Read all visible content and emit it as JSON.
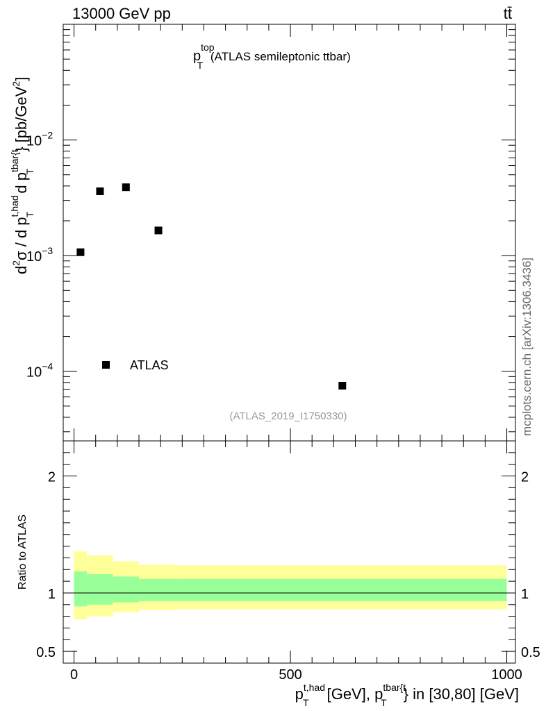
{
  "header": {
    "left": "13000 GeV pp",
    "right": "tt̄"
  },
  "side_label": "mcplots.cern.ch [arXiv:1306.3436]",
  "chart_data": [
    {
      "type": "scatter",
      "title_main": "p",
      "title_sup": "top",
      "title_sub": "T",
      "title_rest": " (ATLAS semileptonic ttbar)",
      "ylabel_parts": {
        "d": "d",
        "sup2": "2",
        "sigma": "σ  /  d p",
        "sup_thad": "t,had",
        "sub_T1": "T",
        "dp": " d p",
        "sup_tbar": "tbar{t",
        "sub_T2": "T",
        "unit": "} [pb/GeV",
        "unit_sup": "2",
        "unit_end": "]"
      },
      "yscale": "log",
      "xlim": [
        -25,
        1020
      ],
      "ylim": [
        2.5e-05,
        0.1
      ],
      "yticks": [
        {
          "value": 0.0001,
          "base": "10",
          "exp": "−4"
        },
        {
          "value": 0.001,
          "base": "10",
          "exp": "−3"
        },
        {
          "value": 0.01,
          "base": "10",
          "exp": "−2"
        }
      ],
      "series": [
        {
          "name": "ATLAS",
          "marker": "square",
          "color": "#000000",
          "x": [
            15,
            60,
            120,
            195,
            620
          ],
          "y": [
            0.00107,
            0.0036,
            0.0039,
            0.00165,
            7.5e-05
          ]
        }
      ],
      "legend_position": "bottom-left",
      "watermark": "(ATLAS_2019_I1750330)"
    },
    {
      "type": "area",
      "ylabel": "Ratio to ATLAS",
      "xlabel_parts": {
        "p1": "p",
        "sup1": "t,had",
        "sub1": "T",
        "mid": " [GeV], p",
        "sup2": "tbar{t",
        "sub2": "T",
        "end": "} in [30,80] [GeV]"
      },
      "xlim": [
        -25,
        1020
      ],
      "ylim": [
        0.4,
        2.3
      ],
      "xticks": [
        {
          "value": 0,
          "label": "0"
        },
        {
          "value": 500,
          "label": "500"
        },
        {
          "value": 1000,
          "label": "1000"
        }
      ],
      "yticks": [
        {
          "value": 0.5,
          "label": "0.5"
        },
        {
          "value": 1,
          "label": "1"
        },
        {
          "value": 2,
          "label": "2"
        }
      ],
      "bins": [
        0,
        30,
        90,
        150,
        240,
        1000
      ],
      "outer_band": {
        "color": "#ffff99",
        "lo": [
          0.775,
          0.8,
          0.835,
          0.855,
          0.86
        ],
        "hi": [
          1.355,
          1.32,
          1.27,
          1.24,
          1.235
        ]
      },
      "inner_band": {
        "color": "#99ff99",
        "lo": [
          0.885,
          0.9,
          0.92,
          0.93,
          0.93
        ],
        "hi": [
          1.185,
          1.16,
          1.14,
          1.12,
          1.12
        ]
      },
      "reference_line": 1
    }
  ]
}
